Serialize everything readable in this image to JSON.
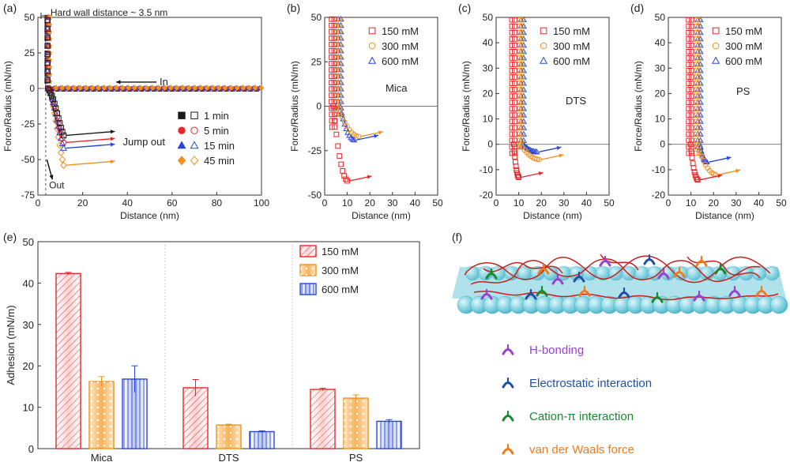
{
  "chart_data": [
    {
      "panel": "(a)",
      "type": "scatter",
      "xlabel": "Distance (nm)",
      "ylabel": "Force/Radius (mN/m)",
      "xlim": [
        0,
        100
      ],
      "ylim": [
        -75,
        50
      ],
      "xticks": [
        0,
        20,
        40,
        60,
        80,
        100
      ],
      "yticks": [
        -75,
        -50,
        -25,
        0,
        25,
        50
      ],
      "annotations": [
        "Hard wall distance ~ 3.5 nm",
        "In",
        "Jump out",
        "Out"
      ],
      "legend": "right",
      "series": [
        {
          "name": "1 min",
          "color": "#1a1a1a",
          "marker": "square",
          "adhesion": -33
        },
        {
          "name": "5 min",
          "color": "#e8262a",
          "marker": "circle",
          "adhesion": -38
        },
        {
          "name": "15 min",
          "color": "#2746d8",
          "marker": "triangle",
          "adhesion": -42
        },
        {
          "name": "45 min",
          "color": "#f0901e",
          "marker": "diamond",
          "adhesion": -54
        }
      ]
    },
    {
      "panel": "(b)",
      "type": "scatter",
      "label": "Mica",
      "xlabel": "Distance (nm)",
      "ylabel": "Force/Radius (mN/m)",
      "xlim": [
        0,
        50
      ],
      "ylim": [
        -50,
        50
      ],
      "xticks": [
        0,
        10,
        20,
        30,
        40,
        50
      ],
      "yticks": [
        -50,
        -25,
        0,
        25,
        50
      ],
      "legend": "top-right",
      "series": [
        {
          "name": "150 mM",
          "color": "#e8262a",
          "marker": "square",
          "wall": 3,
          "adhesion": -42,
          "jump_x": 10
        },
        {
          "name": "300 mM",
          "color": "#f0901e",
          "marker": "circle",
          "wall": 5,
          "adhesion": -17,
          "jump_x": 15
        },
        {
          "name": "600 mM",
          "color": "#2746d8",
          "marker": "triangle",
          "wall": 6,
          "adhesion": -19,
          "jump_x": 13
        }
      ]
    },
    {
      "panel": "(c)",
      "type": "scatter",
      "label": "DTS",
      "xlabel": "Distance (nm)",
      "ylabel": "Force/Radius (mN/m)",
      "xlim": [
        0,
        50
      ],
      "ylim": [
        -20,
        50
      ],
      "xticks": [
        0,
        10,
        20,
        30,
        40,
        50
      ],
      "yticks": [
        -20,
        -10,
        0,
        10,
        20,
        30,
        40,
        50
      ],
      "legend": "top-right",
      "series": [
        {
          "name": "150 mM",
          "color": "#e8262a",
          "marker": "square",
          "wall": 7,
          "adhesion": -13,
          "jump_x": 10
        },
        {
          "name": "300 mM",
          "color": "#f0901e",
          "marker": "circle",
          "wall": 10,
          "adhesion": -6,
          "jump_x": 19
        },
        {
          "name": "600 mM",
          "color": "#2746d8",
          "marker": "triangle",
          "wall": 11,
          "adhesion": -3,
          "jump_x": 18
        }
      ]
    },
    {
      "panel": "(d)",
      "type": "scatter",
      "label": "PS",
      "xlabel": "Distance (nm)",
      "ylabel": "Force/Radius (mN/m)",
      "xlim": [
        0,
        50
      ],
      "ylim": [
        -20,
        50
      ],
      "xticks": [
        0,
        10,
        20,
        30,
        40,
        50
      ],
      "yticks": [
        -20,
        -10,
        0,
        10,
        20,
        30,
        40,
        50
      ],
      "legend": "top-right",
      "series": [
        {
          "name": "150 mM",
          "color": "#e8262a",
          "marker": "square",
          "wall": 9,
          "adhesion": -14,
          "jump_x": 13
        },
        {
          "name": "300 mM",
          "color": "#f0901e",
          "marker": "circle",
          "wall": 12,
          "adhesion": -12,
          "jump_x": 21
        },
        {
          "name": "600 mM",
          "color": "#2746d8",
          "marker": "triangle",
          "wall": 13,
          "adhesion": -7,
          "jump_x": 17
        }
      ]
    },
    {
      "panel": "(e)",
      "type": "bar",
      "categories": [
        "Mica",
        "DTS",
        "PS"
      ],
      "ylabel": "Adhesion (mN/m)",
      "ylim": [
        0,
        50
      ],
      "yticks": [
        0,
        10,
        20,
        30,
        40,
        50
      ],
      "legend": "top-right",
      "series": [
        {
          "name": "150 mM",
          "color": "#e8262a",
          "values": [
            42.3,
            14.7,
            14.3
          ],
          "errors": [
            0.3,
            2.0,
            0.3
          ]
        },
        {
          "name": "300 mM",
          "color": "#f0901e",
          "values": [
            16.2,
            5.7,
            12.2
          ],
          "errors": [
            1.2,
            0.2,
            0.8
          ]
        },
        {
          "name": "600 mM",
          "color": "#2746d8",
          "values": [
            16.8,
            4.1,
            6.6
          ],
          "errors": [
            3.2,
            0.2,
            0.4
          ]
        }
      ]
    }
  ],
  "panel_f": {
    "label": "(f)",
    "legend": [
      {
        "name": "H-bonding",
        "color": "#9a3fd0"
      },
      {
        "name": "Electrostatic interaction",
        "color": "#1f4ea8"
      },
      {
        "name": "Cation-π interaction",
        "color": "#178a2e"
      },
      {
        "name": "van der Waals force",
        "color": "#f07a1a"
      }
    ]
  }
}
